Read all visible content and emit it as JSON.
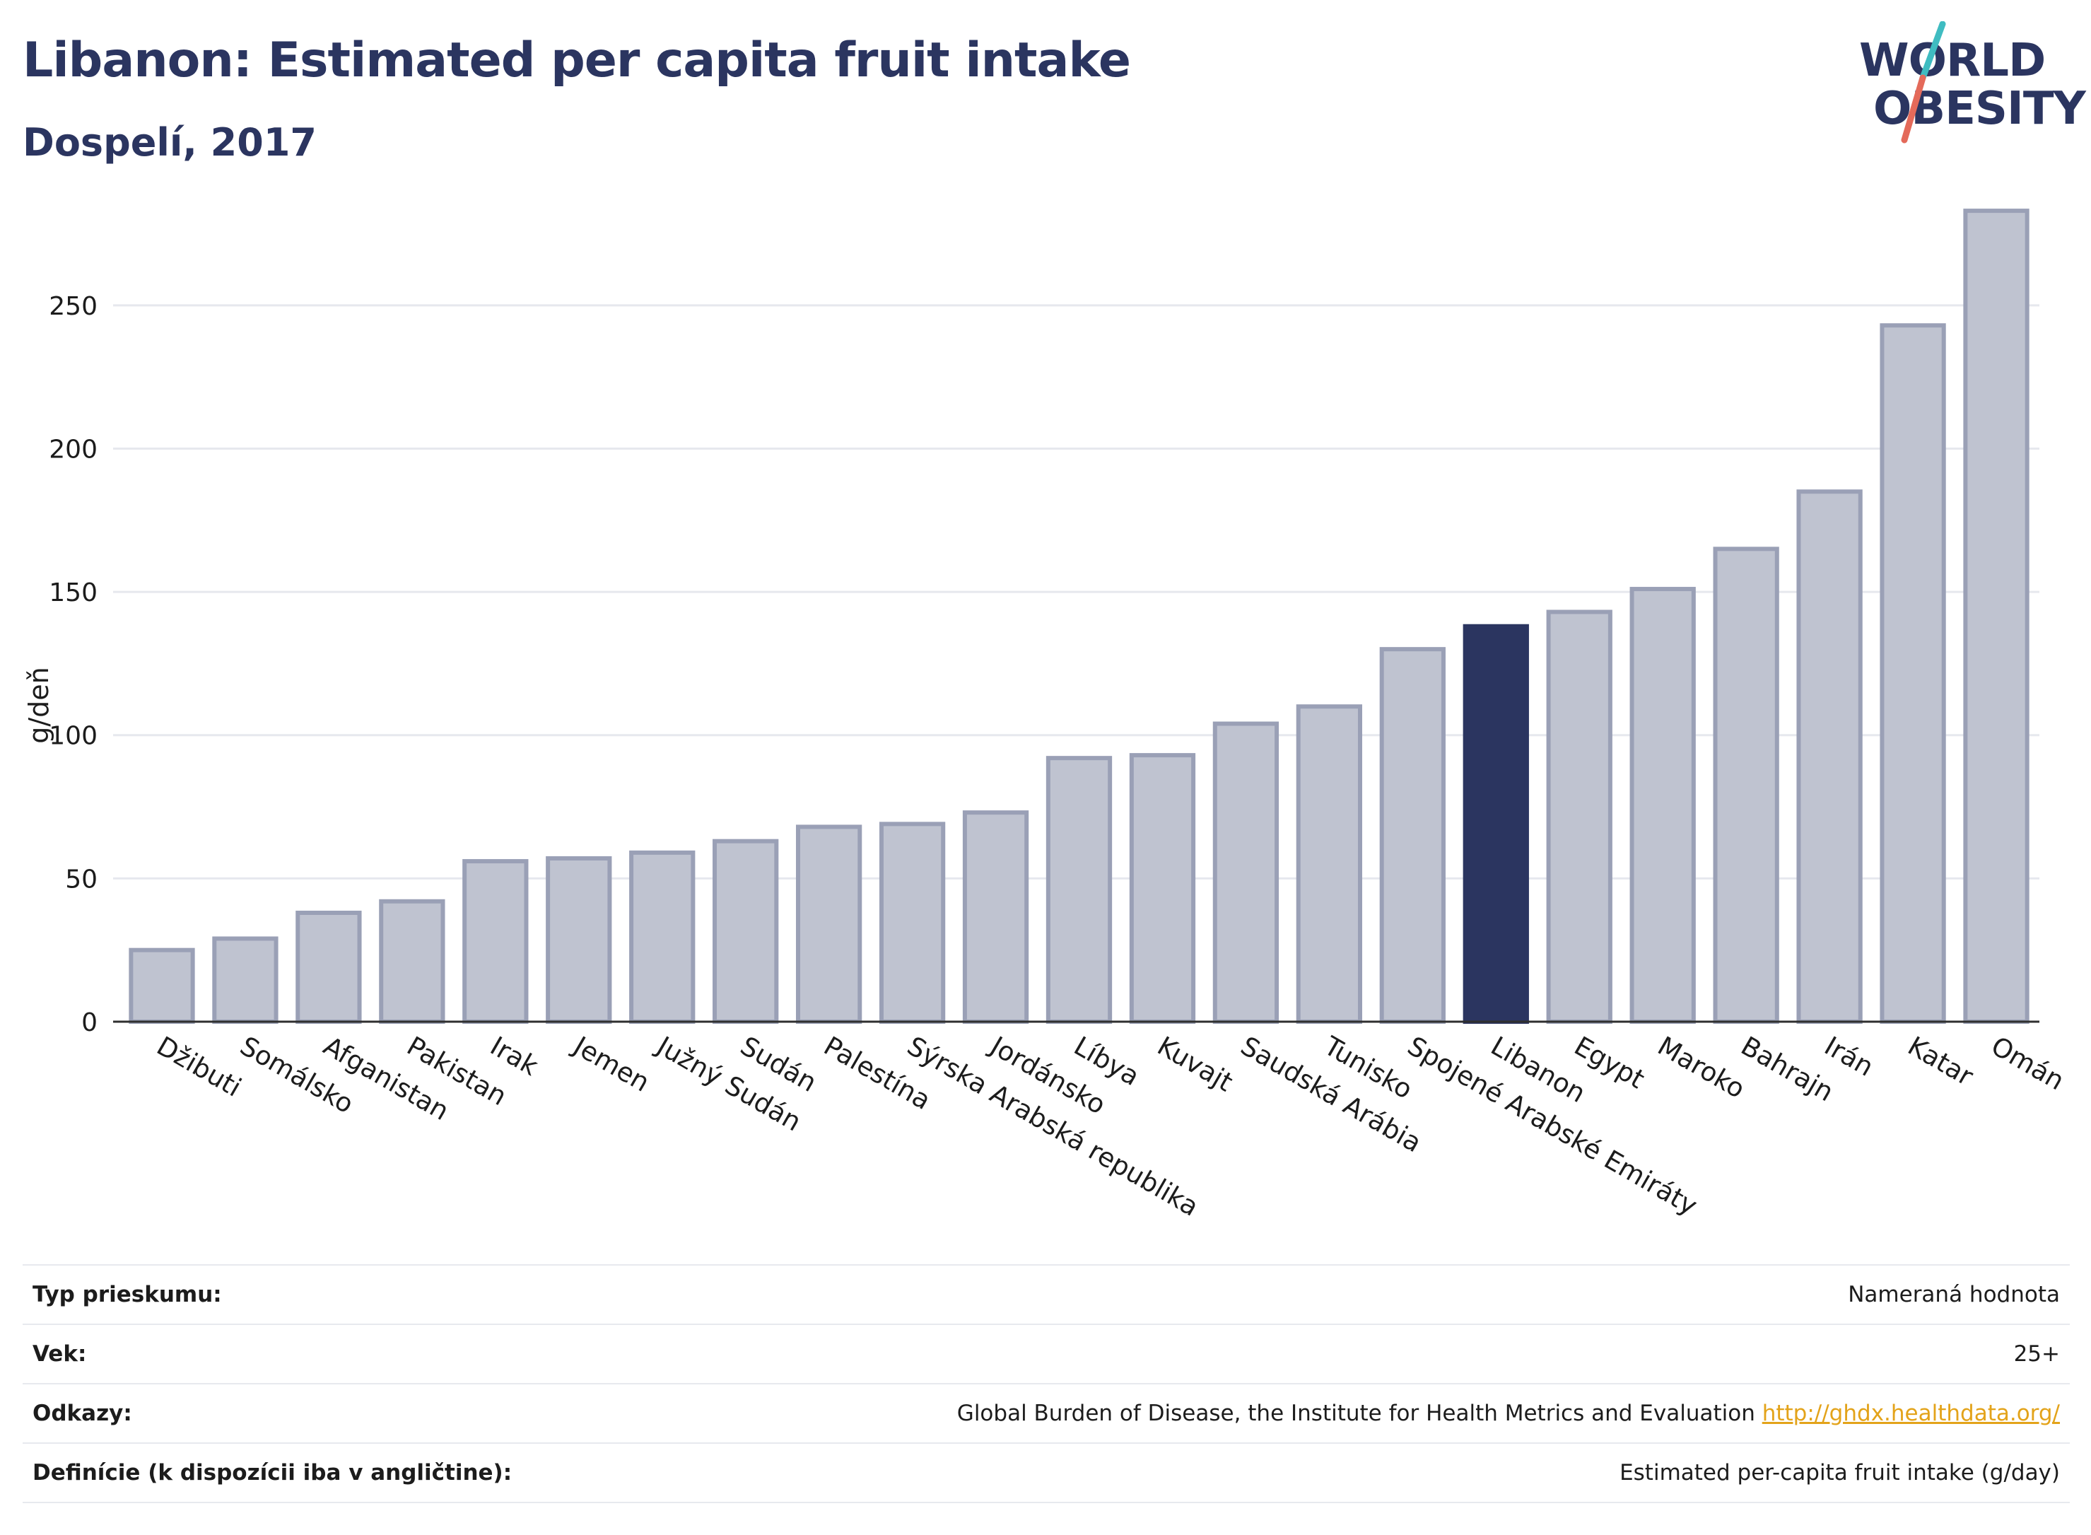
{
  "header": {
    "title": "Libanon: Estimated per capita fruit intake",
    "subtitle": "Dospelí, 2017"
  },
  "logo": {
    "line1": "WORLD",
    "line2": "OBESITY",
    "accent_colors": [
      "#3fbcc1",
      "#e46a5a"
    ]
  },
  "chart_data": {
    "type": "bar",
    "ylabel": "g/deň",
    "xlabel": "",
    "ylim": [
      0,
      285
    ],
    "yticks": [
      0,
      50,
      100,
      150,
      200,
      250
    ],
    "grid": true,
    "highlight_category": "Libanon",
    "colors": {
      "bar": "#bfc3d0",
      "bar_border": "#9aa0b6",
      "highlight": "#2b3560"
    },
    "categories": [
      "Džibuti",
      "Somálsko",
      "Afganistan",
      "Pakistan",
      "Irak",
      "Jemen",
      "Južný Sudán",
      "Sudán",
      "Palestína",
      "Sýrska Arabská republika",
      "Jordánsko",
      "Líbya",
      "Kuvajt",
      "Saudská Arábia",
      "Tunisko",
      "Spojené Arabské Emiráty",
      "Libanon",
      "Egypt",
      "Maroko",
      "Bahrajn",
      "Irán",
      "Katar",
      "Omán"
    ],
    "values": [
      25,
      29,
      38,
      42,
      56,
      57,
      59,
      63,
      68,
      69,
      73,
      92,
      93,
      104,
      110,
      130,
      138,
      143,
      151,
      165,
      185,
      243,
      283
    ]
  },
  "info": [
    {
      "label": "Typ prieskumu:",
      "value": "Nameraná hodnota",
      "link": ""
    },
    {
      "label": "Vek:",
      "value": "25+",
      "link": ""
    },
    {
      "label": "Odkazy:",
      "value": "Global Burden of Disease, the Institute for Health Metrics and Evaluation",
      "link": "http://ghdx.healthdata.org/"
    },
    {
      "label": "Definície (k dispozícii iba v angličtine):",
      "value": "Estimated per-capita fruit intake (g/day)",
      "link": ""
    }
  ]
}
